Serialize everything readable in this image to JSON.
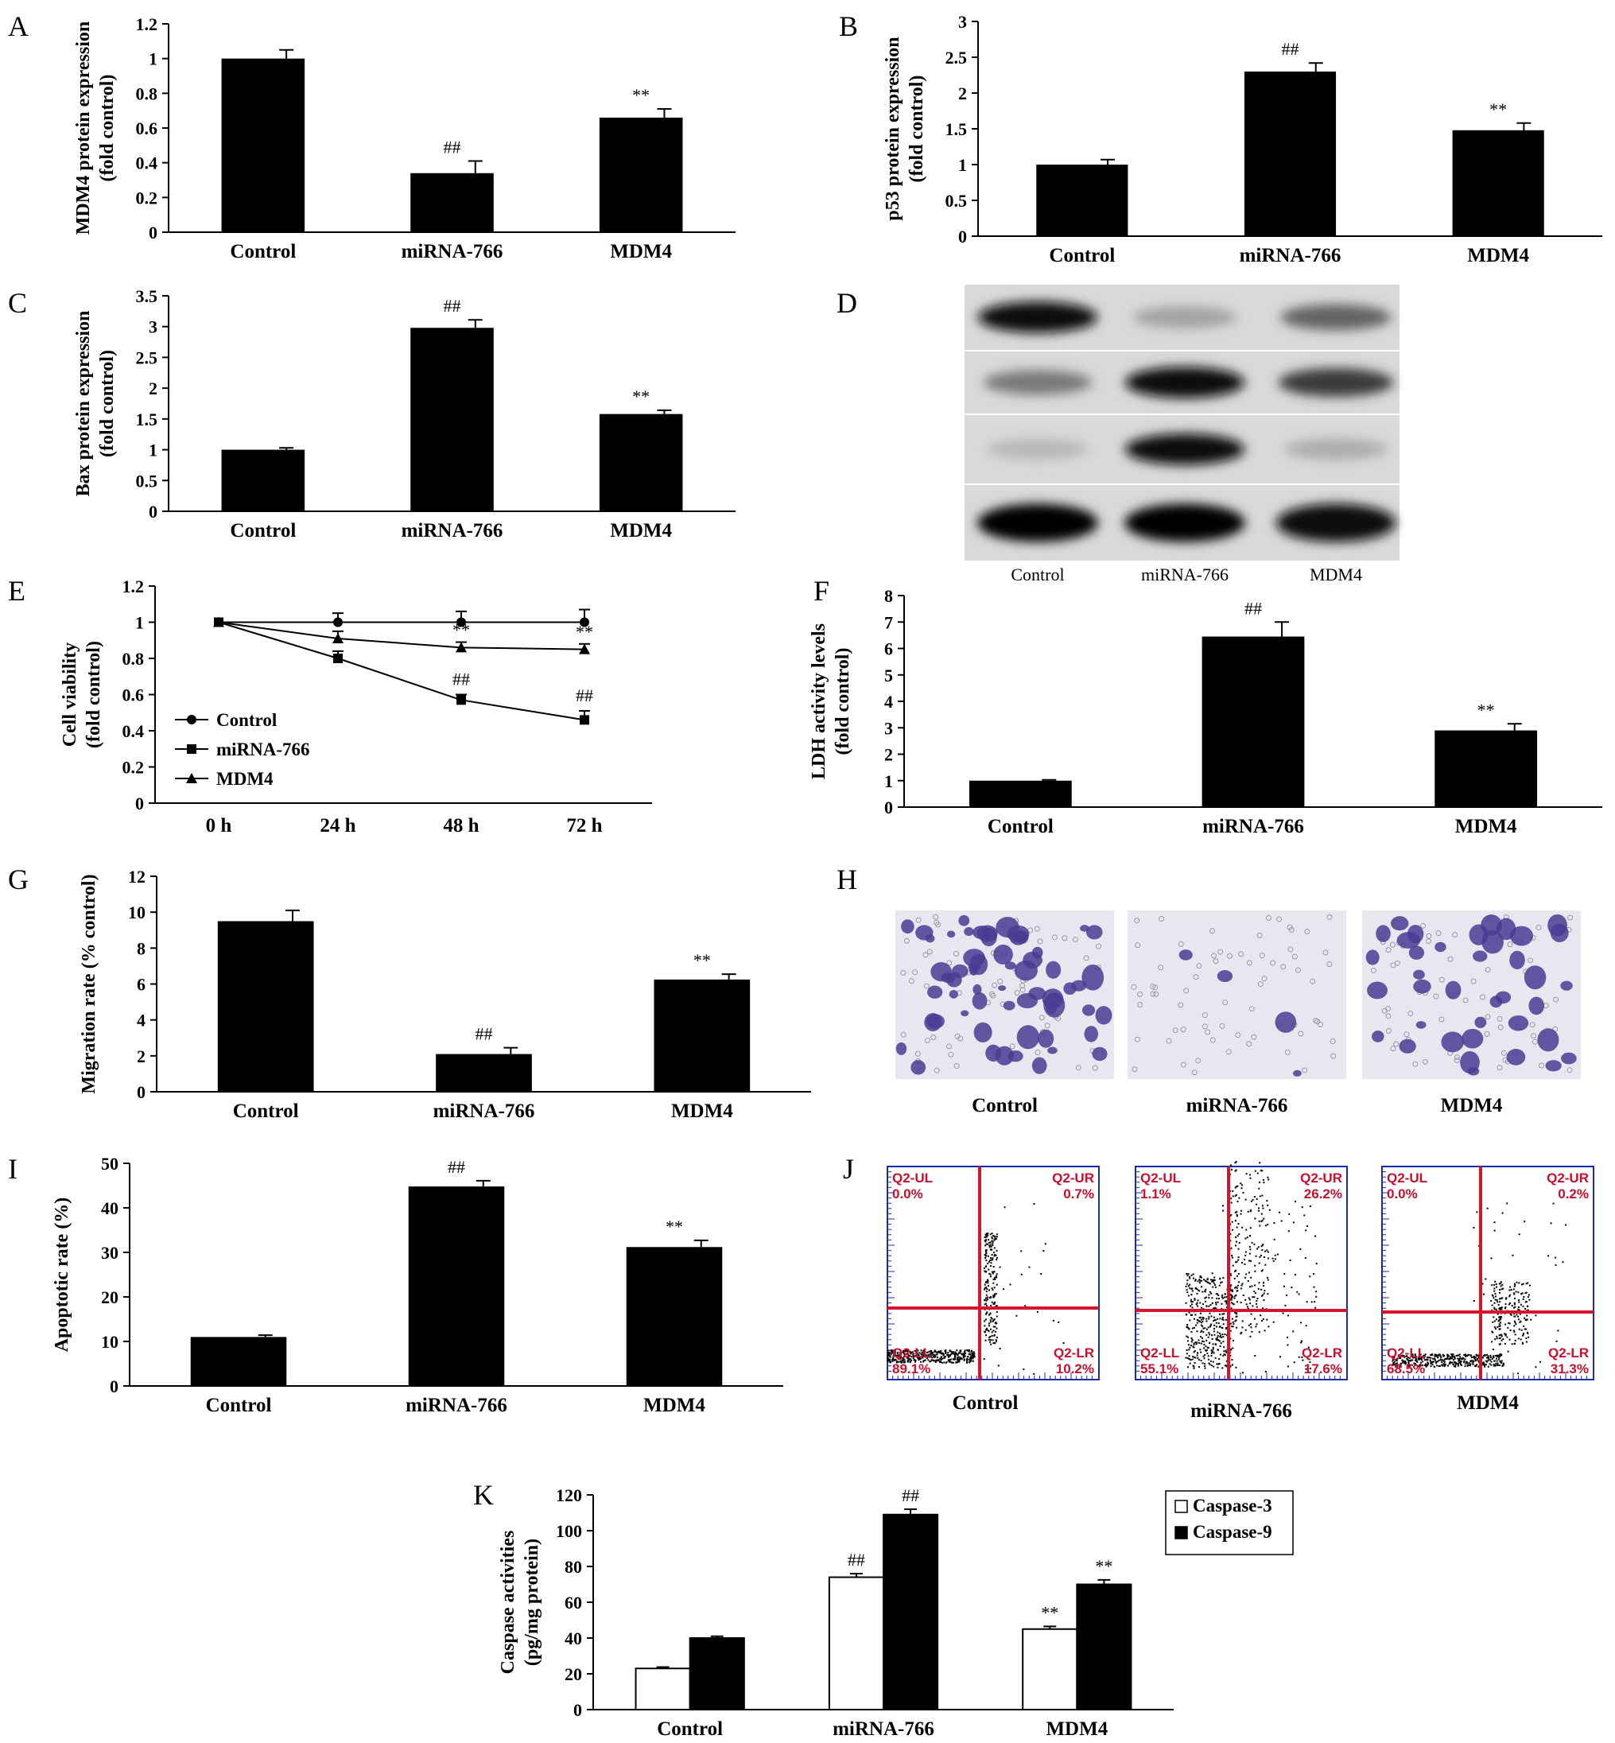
{
  "panels": {
    "A": {
      "letter": "A"
    },
    "B": {
      "letter": "B"
    },
    "C": {
      "letter": "C"
    },
    "D": {
      "letter": "D"
    },
    "E": {
      "letter": "E"
    },
    "F": {
      "letter": "F"
    },
    "G": {
      "letter": "G"
    },
    "H": {
      "letter": "H"
    },
    "I": {
      "letter": "I"
    },
    "J": {
      "letter": "J"
    },
    "K": {
      "letter": "K"
    }
  },
  "chart_data": [
    {
      "id": "A",
      "type": "bar",
      "ylabel": "MDM4 protein expression",
      "ylabel2": "(fold control)",
      "categories": [
        "Control",
        "miRNA-766",
        "MDM4"
      ],
      "values": [
        1.0,
        0.34,
        0.66
      ],
      "errors": [
        0.05,
        0.07,
        0.05
      ],
      "sig": [
        "",
        "##",
        "**"
      ],
      "ylim": [
        0,
        1.2
      ],
      "yticks": [
        0,
        0.2,
        0.4,
        0.6,
        0.8,
        1,
        1.2
      ],
      "ytick_labels": [
        "0",
        "0.2",
        "0.4",
        "0.6",
        "0.8",
        "1",
        "1.2"
      ]
    },
    {
      "id": "B",
      "type": "bar",
      "ylabel": "p53 protein expression",
      "ylabel2": "(fold control)",
      "categories": [
        "Control",
        "miRNA-766",
        "MDM4"
      ],
      "values": [
        1.0,
        2.3,
        1.48
      ],
      "errors": [
        0.07,
        0.12,
        0.1
      ],
      "sig": [
        "",
        "##",
        "**"
      ],
      "ylim": [
        0,
        3
      ],
      "yticks": [
        0,
        0.5,
        1,
        1.5,
        2,
        2.5,
        3
      ],
      "ytick_labels": [
        "0",
        "0.5",
        "1",
        "1.5",
        "2",
        "2.5",
        "3"
      ]
    },
    {
      "id": "C",
      "type": "bar",
      "ylabel": "Bax protein expression",
      "ylabel2": "(fold control)",
      "categories": [
        "Control",
        "miRNA-766",
        "MDM4"
      ],
      "values": [
        1.0,
        2.98,
        1.58
      ],
      "errors": [
        0.03,
        0.13,
        0.06
      ],
      "sig": [
        "",
        "##",
        "**"
      ],
      "ylim": [
        0,
        3.5
      ],
      "yticks": [
        0,
        0.5,
        1,
        1.5,
        2,
        2.5,
        3,
        3.5
      ],
      "ytick_labels": [
        "0",
        "0.5",
        "1",
        "1.5",
        "2",
        "2.5",
        "3",
        "3.5"
      ]
    },
    {
      "id": "E",
      "type": "line",
      "ylabel": "Cell viability",
      "ylabel2": "(fold control)",
      "categories": [
        "0 h",
        "24 h",
        "48 h",
        "72 h"
      ],
      "series": [
        {
          "name": "Control",
          "marker": "circle",
          "values": [
            1.0,
            1.0,
            1.0,
            1.0
          ],
          "errors": [
            0.05,
            0.05,
            0.06,
            0.07
          ],
          "sig": [
            "",
            "",
            "",
            ""
          ]
        },
        {
          "name": "miRNA-766",
          "marker": "square",
          "values": [
            1.0,
            0.8,
            0.57,
            0.46
          ],
          "errors": [
            0.04,
            0.04,
            0.03,
            0.05
          ],
          "sig": [
            "",
            "",
            "##",
            "##"
          ]
        },
        {
          "name": "MDM4",
          "marker": "triangle",
          "values": [
            1.0,
            0.91,
            0.86,
            0.85
          ],
          "errors": [
            0.04,
            0.04,
            0.03,
            0.03
          ],
          "sig": [
            "",
            "",
            "**",
            "**"
          ]
        }
      ],
      "ylim": [
        0,
        1.2
      ],
      "yticks": [
        0,
        0.2,
        0.4,
        0.6,
        0.8,
        1,
        1.2
      ],
      "ytick_labels": [
        "0",
        "0.2",
        "0.4",
        "0.6",
        "0.8",
        "1",
        "1.2"
      ],
      "legend": "bottom-left"
    },
    {
      "id": "F",
      "type": "bar",
      "ylabel": "LDH activity levels",
      "ylabel2": "(fold control)",
      "categories": [
        "Control",
        "miRNA-766",
        "MDM4"
      ],
      "values": [
        1.0,
        6.45,
        2.9
      ],
      "errors": [
        0.03,
        0.55,
        0.25
      ],
      "sig": [
        "",
        "##",
        "**"
      ],
      "ylim": [
        0,
        8
      ],
      "yticks": [
        0,
        1,
        2,
        3,
        4,
        5,
        6,
        7,
        8
      ],
      "ytick_labels": [
        "0",
        "1",
        "2",
        "3",
        "4",
        "5",
        "6",
        "7",
        "8"
      ]
    },
    {
      "id": "G",
      "type": "bar",
      "ylabel": "Migration rate (% control)",
      "ylabel2": "",
      "categories": [
        "Control",
        "miRNA-766",
        "MDM4"
      ],
      "values": [
        9.5,
        2.1,
        6.25
      ],
      "errors": [
        0.6,
        0.35,
        0.3
      ],
      "sig": [
        "",
        "##",
        "**"
      ],
      "ylim": [
        0,
        12
      ],
      "yticks": [
        0,
        2,
        4,
        6,
        8,
        10,
        12
      ],
      "ytick_labels": [
        "0",
        "2",
        "4",
        "6",
        "8",
        "10",
        "12"
      ]
    },
    {
      "id": "I",
      "type": "bar",
      "ylabel": "Apoptotic rate (%)",
      "ylabel2": "",
      "categories": [
        "Control",
        "miRNA-766",
        "MDM4"
      ],
      "values": [
        11.0,
        44.8,
        31.2
      ],
      "errors": [
        0.4,
        1.3,
        1.5
      ],
      "sig": [
        "",
        "##",
        "**"
      ],
      "ylim": [
        0,
        50
      ],
      "yticks": [
        0,
        10,
        20,
        30,
        40,
        50
      ],
      "ytick_labels": [
        "0",
        "10",
        "20",
        "30",
        "40",
        "50"
      ]
    },
    {
      "id": "K",
      "type": "bar",
      "ylabel": "Caspase activities",
      "ylabel2": "(pg/mg protein)",
      "categories": [
        "Control",
        "miRNA-766",
        "MDM4"
      ],
      "series": [
        {
          "name": "Caspase-3",
          "fill": "#ffffff",
          "values": [
            23,
            74,
            45
          ],
          "errors": [
            0.8,
            2.0,
            1.5
          ],
          "sig": [
            "",
            "##",
            "**"
          ]
        },
        {
          "name": "Caspase-9",
          "fill": "#000000",
          "values": [
            40,
            109,
            70
          ],
          "errors": [
            1.0,
            3.0,
            2.5
          ],
          "sig": [
            "",
            "##",
            "**"
          ]
        }
      ],
      "ylim": [
        0,
        120
      ],
      "yticks": [
        0,
        20,
        40,
        60,
        80,
        100,
        120
      ],
      "ytick_labels": [
        "0",
        "20",
        "40",
        "60",
        "80",
        "100",
        "120"
      ],
      "legend": "top-right"
    }
  ],
  "blot": {
    "labels": [
      "Control",
      "miRNA-766",
      "MDM4"
    ],
    "band_intensity": [
      [
        0.95,
        0.25,
        0.55
      ],
      [
        0.45,
        0.95,
        0.75
      ],
      [
        0.15,
        0.95,
        0.2
      ],
      [
        1.0,
        1.0,
        0.95
      ]
    ]
  },
  "micrographs": {
    "labels": [
      "Control",
      "miRNA-766",
      "MDM4"
    ],
    "cell_density": [
      0.8,
      0.05,
      0.5
    ]
  },
  "flow": {
    "labels": [
      "Control",
      "miRNA-766",
      "MDM4"
    ],
    "quadrants": [
      {
        "ul": "Q2-UL",
        "ul_val": "0.0%",
        "ur": "Q2-UR",
        "ur_val": "0.7%",
        "ll": "Q2-LL",
        "ll_val": "89.1%",
        "lr": "Q2-LR",
        "lr_val": "10.2%"
      },
      {
        "ul": "Q2-UL",
        "ul_val": "1.1%",
        "ur": "Q2-UR",
        "ur_val": "26.2%",
        "ll": "Q2-LL",
        "ll_val": "55.1%",
        "lr": "Q2-LR",
        "lr_val": "17.6%"
      },
      {
        "ul": "Q2-UL",
        "ul_val": "0.0%",
        "ur": "Q2-UR",
        "ur_val": "0.2%",
        "ll": "Q2-LL",
        "ll_val": "68.5%",
        "lr": "Q2-LR",
        "lr_val": "31.3%"
      }
    ]
  }
}
